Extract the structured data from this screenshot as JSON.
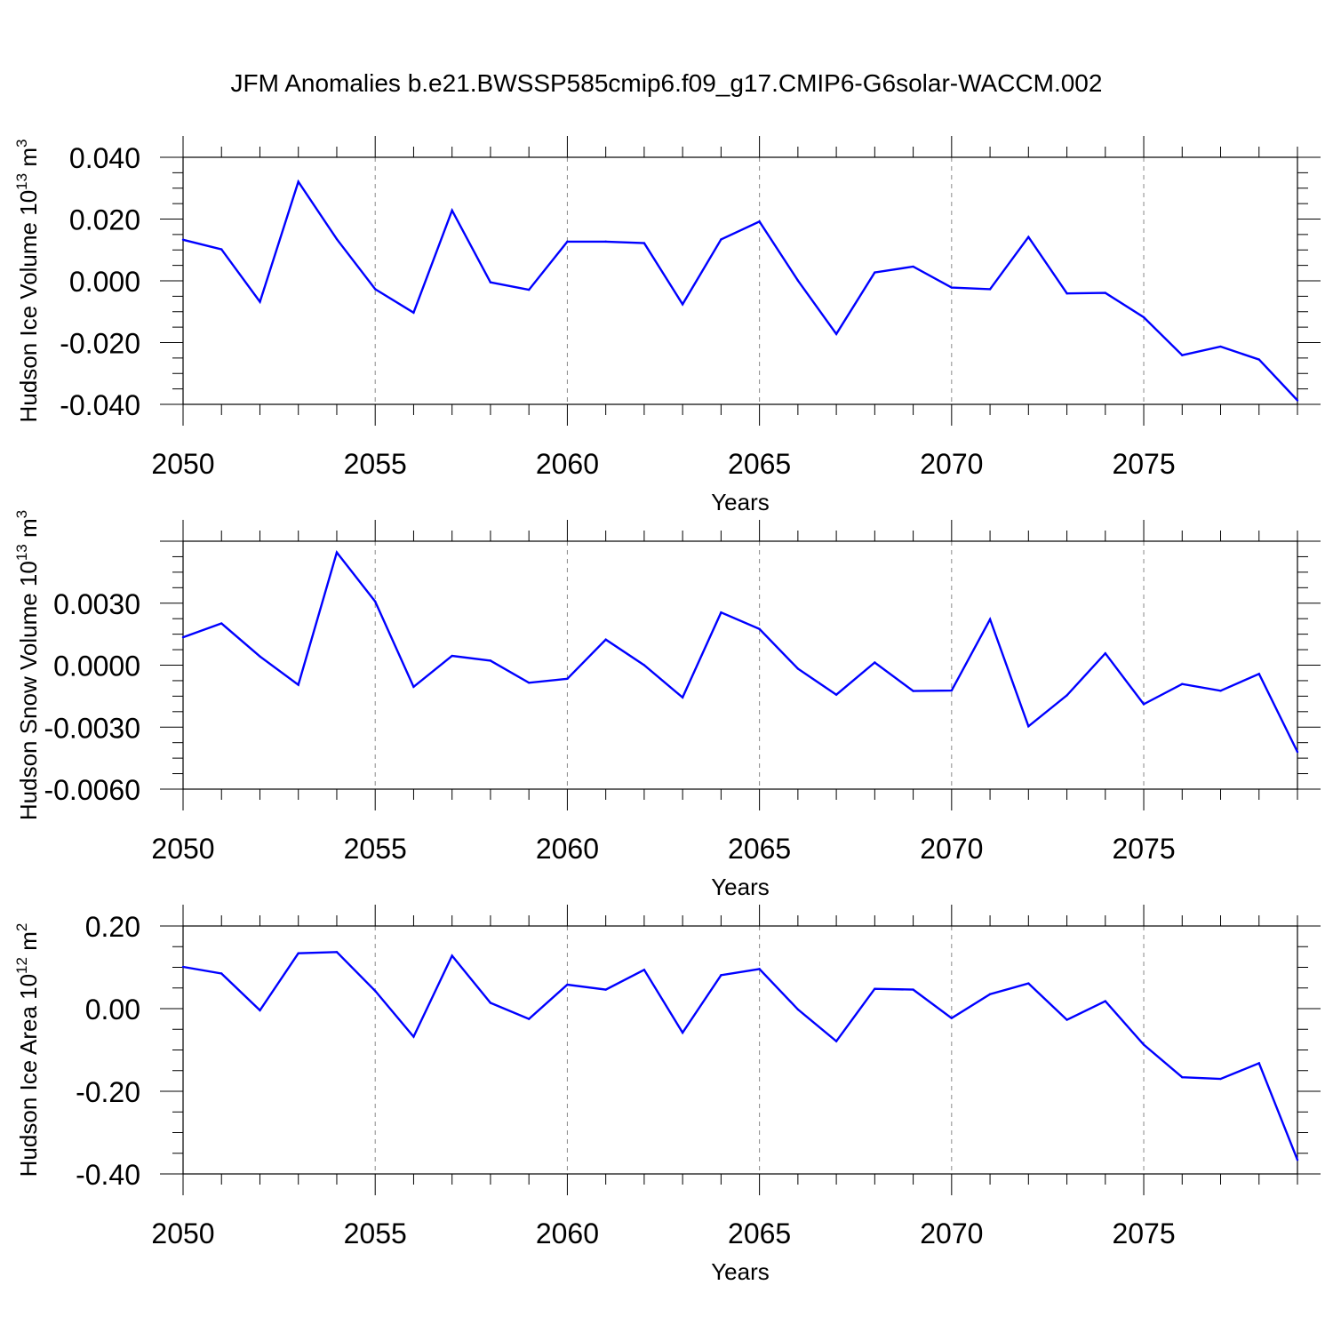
{
  "title": "JFM Anomalies b.e21.BWSSP585cmip6.f09_g17.CMIP6-G6solar-WACCM.002",
  "colors": {
    "series": "#0000ff",
    "axis": "#000000",
    "grid": "#888888"
  },
  "chart_data": [
    {
      "type": "line",
      "ylabel_text": "Hudson Ice Volume 10",
      "ylabel_exp": "13",
      "ylabel_unit": "m",
      "ylabel_unit_exp": "3",
      "xlabel": "Years",
      "xlim": [
        2050,
        2079
      ],
      "ylim": [
        -0.04,
        0.04
      ],
      "yticks": [
        -0.04,
        -0.02,
        0.0,
        0.02,
        0.04
      ],
      "yticklabels": [
        "-0.040",
        "-0.020",
        "0.000",
        "0.020",
        "0.040"
      ],
      "xticks": [
        2050,
        2055,
        2060,
        2065,
        2070,
        2075
      ],
      "xticklabels": [
        "2050",
        "2055",
        "2060",
        "2065",
        "2070",
        "2075"
      ],
      "x": [
        2050,
        2051,
        2052,
        2053,
        2054,
        2055,
        2056,
        2057,
        2058,
        2059,
        2060,
        2061,
        2062,
        2063,
        2064,
        2065,
        2066,
        2067,
        2068,
        2069,
        2070,
        2071,
        2072,
        2073,
        2074,
        2075,
        2076,
        2077,
        2078,
        2079
      ],
      "values": [
        0.0133,
        0.0102,
        -0.0068,
        0.0321,
        0.0135,
        -0.0027,
        -0.0103,
        0.0228,
        -0.0005,
        -0.0029,
        0.0127,
        0.0127,
        0.0122,
        -0.0076,
        0.0134,
        0.0192,
        0.0001,
        -0.0172,
        0.0027,
        0.0046,
        -0.0022,
        -0.0027,
        0.0142,
        -0.0041,
        -0.0039,
        -0.0118,
        -0.0241,
        -0.0213,
        -0.0255,
        -0.0387
      ]
    },
    {
      "type": "line",
      "ylabel_text": "Hudson Snow Volume 10",
      "ylabel_exp": "13",
      "ylabel_unit": "m",
      "ylabel_unit_exp": "3",
      "xlabel": "Years",
      "xlim": [
        2050,
        2079
      ],
      "ylim": [
        -0.006,
        0.006
      ],
      "yticks": [
        -0.006,
        -0.003,
        0.0,
        0.003
      ],
      "yticklabels": [
        "-0.0060",
        "-0.0030",
        "0.0000",
        "0.0030"
      ],
      "xticks": [
        2050,
        2055,
        2060,
        2065,
        2070,
        2075
      ],
      "xticklabels": [
        "2050",
        "2055",
        "2060",
        "2065",
        "2070",
        "2075"
      ],
      "x": [
        2050,
        2051,
        2052,
        2053,
        2054,
        2055,
        2056,
        2057,
        2058,
        2059,
        2060,
        2061,
        2062,
        2063,
        2064,
        2065,
        2066,
        2067,
        2068,
        2069,
        2070,
        2071,
        2072,
        2073,
        2074,
        2075,
        2076,
        2077,
        2078,
        2079
      ],
      "values": [
        0.00135,
        0.00202,
        0.00042,
        -0.00095,
        0.00546,
        0.00308,
        -0.00105,
        0.00045,
        0.00022,
        -0.00085,
        -0.00066,
        0.00124,
        0.0,
        -0.00156,
        0.00255,
        0.00175,
        -0.00017,
        -0.00143,
        0.00013,
        -0.00125,
        -0.00123,
        0.00222,
        -0.00296,
        -0.00146,
        0.00057,
        -0.00189,
        -0.00091,
        -0.00124,
        -0.00042,
        -0.0042
      ]
    },
    {
      "type": "line",
      "ylabel_text": "Hudson Ice Area 10",
      "ylabel_exp": "12",
      "ylabel_unit": "m",
      "ylabel_unit_exp": "2",
      "xlabel": "Years",
      "xlim": [
        2050,
        2079
      ],
      "ylim": [
        -0.4,
        0.2
      ],
      "yticks": [
        -0.4,
        -0.2,
        0.0,
        0.2
      ],
      "yticklabels": [
        "-0.40",
        "-0.20",
        "0.00",
        "0.20"
      ],
      "xticks": [
        2050,
        2055,
        2060,
        2065,
        2070,
        2075
      ],
      "xticklabels": [
        "2050",
        "2055",
        "2060",
        "2065",
        "2070",
        "2075"
      ],
      "x": [
        2050,
        2051,
        2052,
        2053,
        2054,
        2055,
        2056,
        2057,
        2058,
        2059,
        2060,
        2061,
        2062,
        2063,
        2064,
        2065,
        2066,
        2067,
        2068,
        2069,
        2070,
        2071,
        2072,
        2073,
        2074,
        2075,
        2076,
        2077,
        2078,
        2079
      ],
      "values": [
        0.101,
        0.085,
        -0.004,
        0.134,
        0.137,
        0.043,
        -0.068,
        0.128,
        0.014,
        -0.025,
        0.058,
        0.046,
        0.094,
        -0.058,
        0.081,
        0.096,
        -0.002,
        -0.079,
        0.048,
        0.046,
        -0.023,
        0.035,
        0.061,
        -0.027,
        0.018,
        -0.087,
        -0.166,
        -0.17,
        -0.132,
        -0.366
      ]
    }
  ]
}
